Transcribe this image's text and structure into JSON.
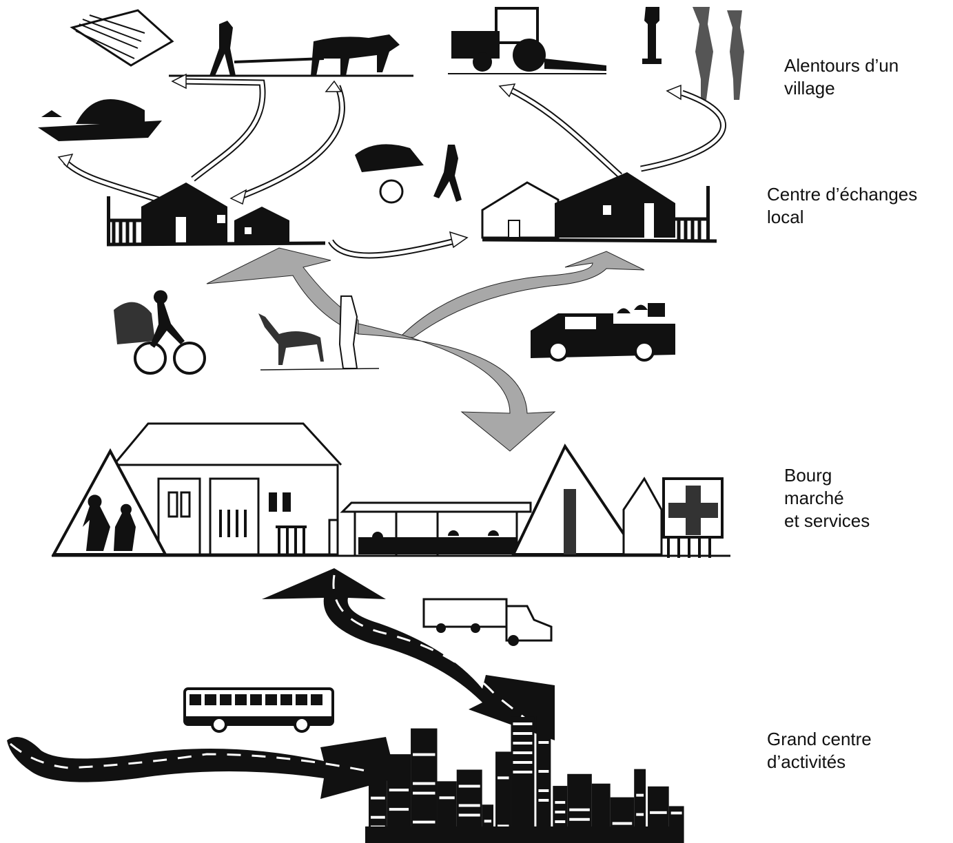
{
  "levels": [
    {
      "lines": [
        "Alentours d’un",
        "village"
      ]
    },
    {
      "lines": [
        "Centre d’échanges",
        "local"
      ]
    },
    {
      "lines": [
        "Bourg",
        "marché",
        "et services"
      ]
    },
    {
      "lines": [
        "Grand centre",
        "d’activités"
      ]
    }
  ]
}
